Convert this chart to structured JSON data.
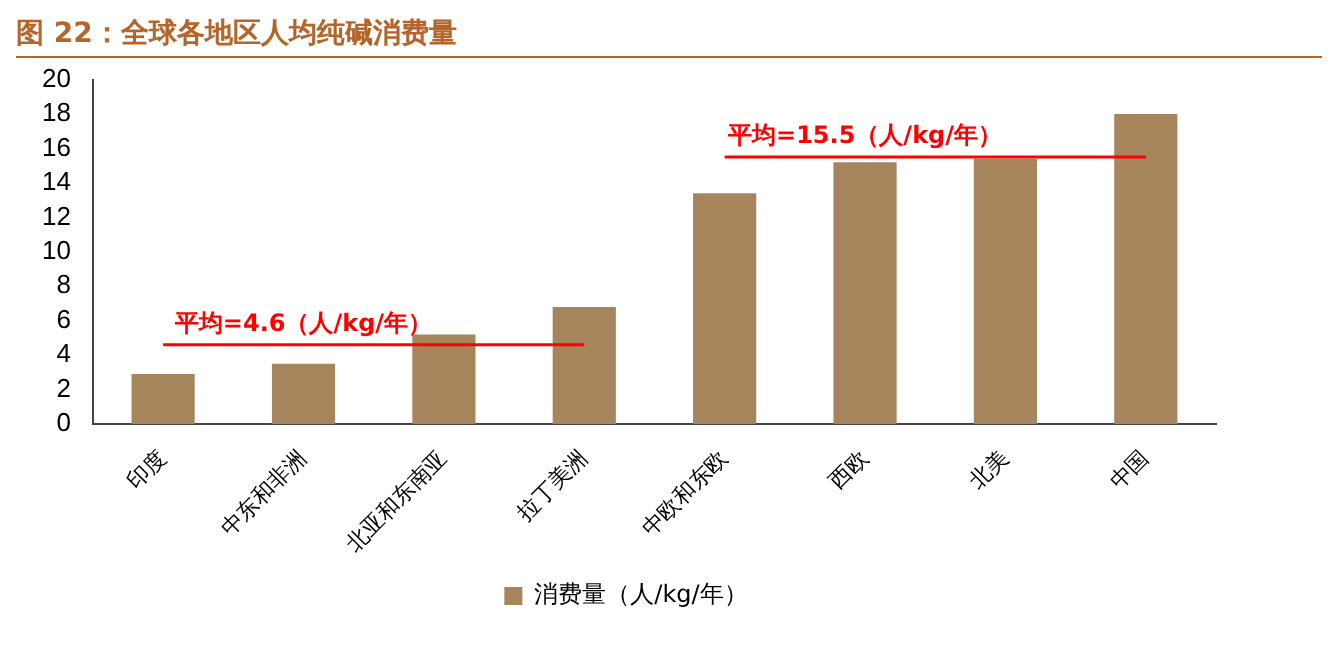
{
  "chart_data": {
    "type": "bar",
    "title": "图 22：全球各地区人均纯碱消费量",
    "categories": [
      "印度",
      "中东和非洲",
      "北亚和东南亚",
      "拉丁美洲",
      "中欧和东欧",
      "西欧",
      "北美",
      "中国"
    ],
    "series": [
      {
        "name": "消费量（人/kg/年）",
        "color": "#a6845c",
        "values": [
          2.9,
          3.5,
          5.2,
          6.8,
          13.4,
          15.2,
          15.4,
          18.0
        ]
      },
      {
        "type": "line",
        "color": "#ff0000",
        "values": [
          4.6,
          4.6,
          4.6,
          4.6,
          null,
          null,
          null,
          null
        ]
      },
      {
        "type": "line",
        "color": "#ff0000",
        "values": [
          null,
          null,
          null,
          null,
          15.5,
          15.5,
          15.5,
          15.5
        ]
      }
    ],
    "annotations": [
      {
        "text": "平均=4.6（人/kg/年）",
        "x": "中东和非洲",
        "y": 4.6
      },
      {
        "text": "平均=15.5（人/kg/年）",
        "x": "西欧",
        "y": 15.5
      }
    ],
    "ylim": [
      0,
      20
    ],
    "yticks": [
      0,
      2,
      4,
      6,
      8,
      10,
      12,
      14,
      16,
      18,
      20
    ],
    "grid": false,
    "legend": "bottom"
  }
}
